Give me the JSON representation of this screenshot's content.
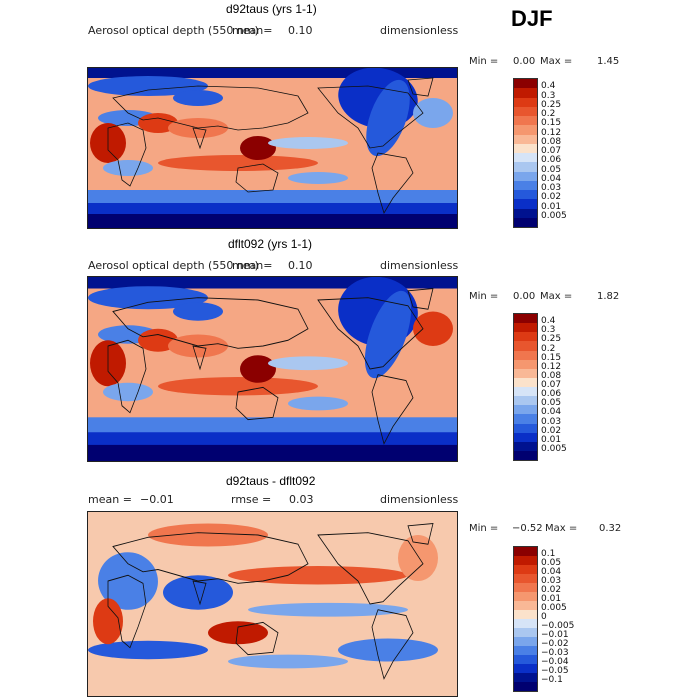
{
  "season": "DJF",
  "panels": [
    {
      "title": "d92taus (yrs 1-1)",
      "variable": "Aerosol optical depth (550 nm)",
      "mean_label": "mean=",
      "mean_value": "0.10",
      "units": "dimensionless",
      "min_label": "Min =",
      "min_value": "0.00",
      "max_label": "Max =",
      "max_value": "1.45",
      "levels": [
        "0.4",
        "0.3",
        "0.25",
        "0.2",
        "0.15",
        "0.12",
        "0.08",
        "0.07",
        "0.06",
        "0.05",
        "0.04",
        "0.03",
        "0.02",
        "0.01",
        "0.005"
      ]
    },
    {
      "title": "dflt092 (yrs 1-1)",
      "variable": "Aerosol optical depth (550 nm)",
      "mean_label": "mean=",
      "mean_value": "0.10",
      "units": "dimensionless",
      "min_label": "Min =",
      "min_value": "0.00",
      "max_label": "Max =",
      "max_value": "1.82",
      "levels": [
        "0.4",
        "0.3",
        "0.25",
        "0.2",
        "0.15",
        "0.12",
        "0.08",
        "0.07",
        "0.06",
        "0.05",
        "0.04",
        "0.03",
        "0.02",
        "0.01",
        "0.005"
      ]
    },
    {
      "title": "d92taus - dflt092",
      "mean_label": "mean =",
      "mean_value": "−0.01",
      "rmse_label": "rmse =",
      "rmse_value": "0.03",
      "units": "dimensionless",
      "min_label": "Min =",
      "min_value": "−0.52",
      "max_label": "Max =",
      "max_value": "0.32",
      "levels": [
        "0.1",
        "0.05",
        "0.04",
        "0.03",
        "0.02",
        "0.01",
        "0.005",
        "0",
        "−0.005",
        "−0.01",
        "−0.02",
        "−0.03",
        "−0.04",
        "−0.05",
        "−0.1"
      ]
    }
  ],
  "colors": {
    "scale": [
      "#8b0000",
      "#c01a00",
      "#dd3a14",
      "#e8562e",
      "#f0764e",
      "#f5976f",
      "#f9b896",
      "#fbe2cb",
      "#d6e4f7",
      "#aac7f0",
      "#7aa6ec",
      "#4a80e6",
      "#2559db",
      "#0a2fc7",
      "#00128f",
      "#000070"
    ],
    "ocean_base": "#f5a784",
    "land_line": "#111111"
  }
}
